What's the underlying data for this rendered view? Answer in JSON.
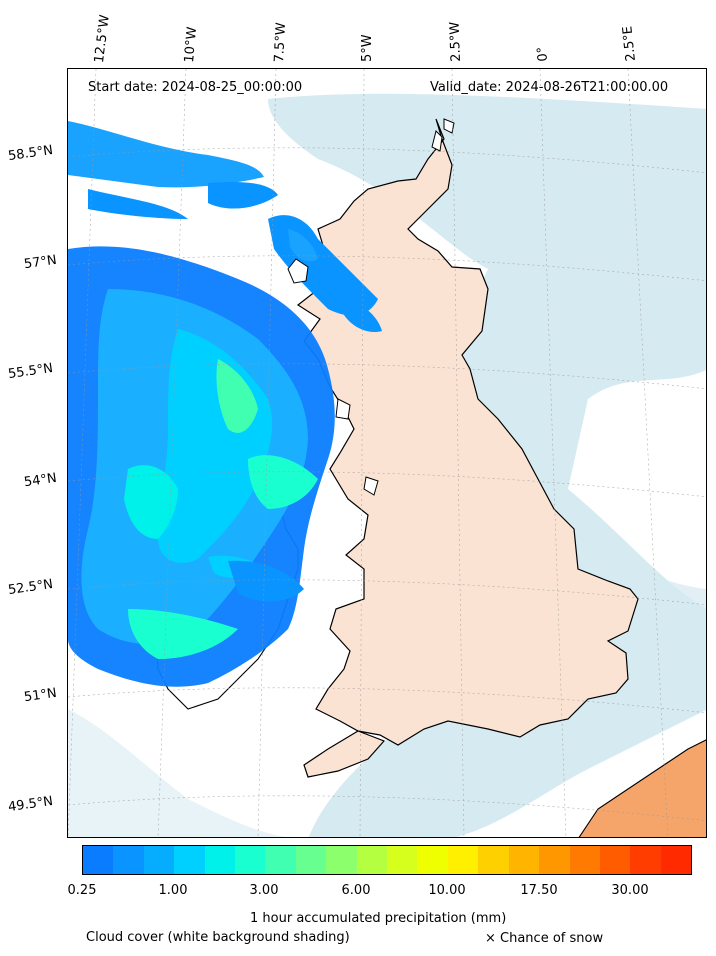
{
  "header": {
    "start_date": "Start date: 2024-08-25_00:00:00",
    "valid_date": "Valid_date: 2024-08-26T21:00:00.00"
  },
  "map": {
    "longitude_labels": [
      "12.5°W",
      "10°W",
      "7.5°W",
      "5°W",
      "2.5°W",
      "0°",
      "2.5°E"
    ],
    "latitude_labels": [
      "58.5°N",
      "57°N",
      "55.5°N",
      "54°N",
      "52.5°N",
      "51°N",
      "49.5°N"
    ]
  },
  "colorbar": {
    "colors": [
      "#0a7cff",
      "#0a94ff",
      "#06adff",
      "#00d0ff",
      "#00f0ea",
      "#1affd0",
      "#40ffb0",
      "#66ff90",
      "#8cff6c",
      "#b4ff40",
      "#d6ff1e",
      "#f0ff00",
      "#fff000",
      "#ffd000",
      "#ffb400",
      "#ff9800",
      "#ff7a00",
      "#ff5c00",
      "#ff3d00",
      "#ff2a00"
    ],
    "tick_labels": [
      "0.25",
      "1.00",
      "3.00",
      "6.00",
      "10.00",
      "17.50",
      "30.00"
    ],
    "label": "1 hour accumulated precipitation (mm)"
  },
  "legend": {
    "cloud_cover": "Cloud cover (white background shading)",
    "snow": "× Chance of snow"
  }
}
